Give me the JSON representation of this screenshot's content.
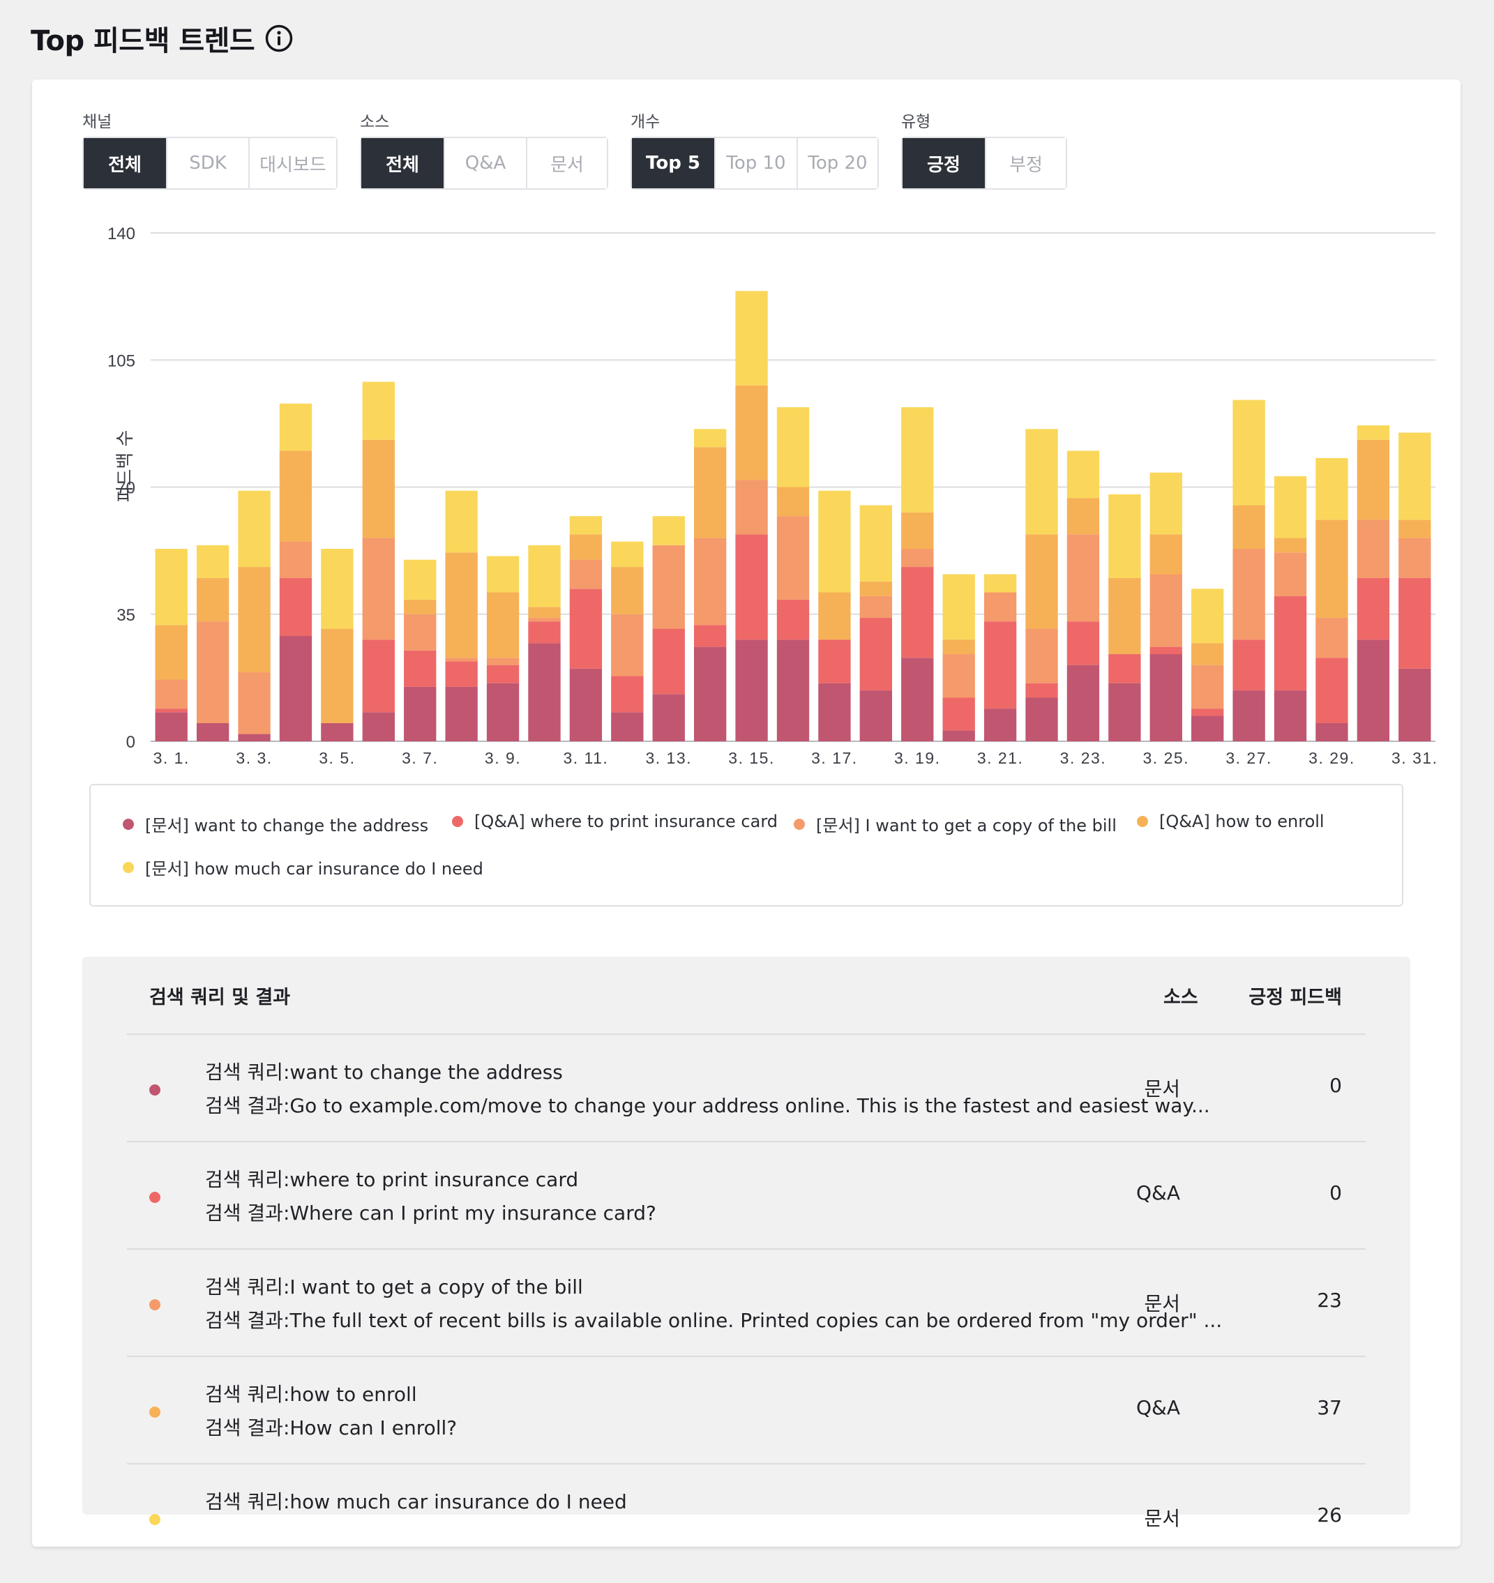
{
  "header": {
    "title": "Top 피드백 트렌드"
  },
  "filters": [
    {
      "label": "채널",
      "options": [
        "전체",
        "SDK",
        "대시보드"
      ],
      "active": 0
    },
    {
      "label": "소스",
      "options": [
        "전체",
        "Q&A",
        "문서"
      ],
      "active": 0
    },
    {
      "label": "개수",
      "options": [
        "Top 5",
        "Top 10",
        "Top 20"
      ],
      "active": 0
    },
    {
      "label": "유형",
      "options": [
        "긍정",
        "부정"
      ],
      "active": 0
    }
  ],
  "colors": {
    "s1": "#c15670",
    "s2": "#ee6868",
    "s3": "#f59a6a",
    "s4": "#f6b156",
    "s5": "#fad75a",
    "active_button": "#2c3038"
  },
  "chart_data": {
    "type": "bar",
    "stacked": true,
    "ylabel": "피드백 수",
    "ylim": [
      0,
      140
    ],
    "yticks": [
      0,
      35,
      70,
      105,
      140
    ],
    "categories": [
      "3. 1.",
      "3. 2.",
      "3. 3.",
      "3. 4.",
      "3. 5.",
      "3. 6.",
      "3. 7.",
      "3. 8.",
      "3. 9.",
      "3. 10.",
      "3. 11.",
      "3. 12.",
      "3. 13.",
      "3. 14.",
      "3. 15.",
      "3. 16.",
      "3. 17.",
      "3. 18.",
      "3. 19.",
      "3. 20.",
      "3. 21.",
      "3. 22.",
      "3. 23.",
      "3. 24.",
      "3. 25.",
      "3. 26.",
      "3. 27.",
      "3. 28.",
      "3. 29.",
      "3. 30.",
      "3. 31."
    ],
    "xtick_labels": [
      "3. 1.",
      "3. 3.",
      "3. 5.",
      "3. 7.",
      "3. 9.",
      "3. 11.",
      "3. 13.",
      "3. 15.",
      "3. 17.",
      "3. 19.",
      "3. 21.",
      "3. 23.",
      "3. 25.",
      "3. 27.",
      "3. 29.",
      "3. 31."
    ],
    "grid": true,
    "legend_position": "bottom",
    "series": [
      {
        "name": "[문서] want to change the address",
        "values": [
          8,
          5,
          2,
          29,
          5,
          8,
          15,
          15,
          16,
          27,
          20,
          8,
          13,
          26,
          28,
          28,
          16,
          14,
          23,
          3,
          9,
          12,
          21,
          16,
          24,
          7,
          14,
          14,
          5,
          28,
          20
        ]
      },
      {
        "name": "[Q&A] where to print insurance card",
        "values": [
          1,
          0,
          0,
          16,
          0,
          20,
          10,
          7,
          5,
          6,
          22,
          10,
          18,
          6,
          29,
          11,
          12,
          20,
          25,
          9,
          24,
          4,
          12,
          8,
          2,
          2,
          14,
          26,
          18,
          17,
          25
        ]
      },
      {
        "name": "[문서] I want to get a copy of the bill",
        "values": [
          8,
          28,
          17,
          10,
          0,
          28,
          10,
          1,
          2,
          1,
          8,
          17,
          23,
          24,
          15,
          23,
          0,
          6,
          5,
          12,
          8,
          15,
          24,
          0,
          20,
          12,
          25,
          12,
          11,
          16,
          11
        ]
      },
      {
        "name": "[Q&A] how to enroll",
        "values": [
          15,
          12,
          29,
          25,
          26,
          27,
          4,
          29,
          18,
          3,
          7,
          13,
          0,
          25,
          26,
          8,
          13,
          4,
          10,
          4,
          0,
          26,
          10,
          21,
          11,
          6,
          12,
          4,
          27,
          22,
          5
        ]
      },
      {
        "name": "[문서] how much car insurance do I need",
        "values": [
          21,
          9,
          21,
          13,
          22,
          16,
          11,
          17,
          10,
          17,
          5,
          7,
          8,
          5,
          26,
          22,
          28,
          21,
          29,
          18,
          5,
          29,
          13,
          23,
          17,
          15,
          29,
          17,
          17,
          4,
          24
        ]
      }
    ]
  },
  "table": {
    "headers": {
      "query": "검색 쿼리 및 결과",
      "source": "소스",
      "count": "긍정 피드백"
    },
    "rows": [
      {
        "query": "검색 쿼리:want to change the address",
        "result": "검색 결과:Go to example.com/move to change your address online. This is the fastest and easiest way...",
        "source": "문서",
        "count": "0"
      },
      {
        "query": "검색 쿼리:where to print insurance card",
        "result": "검색 결과:Where can I print my insurance card?",
        "source": "Q&A",
        "count": "0"
      },
      {
        "query": "검색 쿼리:I want to get a copy of the bill",
        "result": "검색 결과:The full text of recent bills is available online. Printed copies can be ordered from \"my order\" ...",
        "source": "문서",
        "count": "23"
      },
      {
        "query": "검색 쿼리:how to enroll",
        "result": "검색 결과:How can I enroll?",
        "source": "Q&A",
        "count": "37"
      },
      {
        "query": "검색 쿼리:how much car insurance do I need",
        "result": "",
        "source": "문서",
        "count": "26"
      }
    ]
  }
}
